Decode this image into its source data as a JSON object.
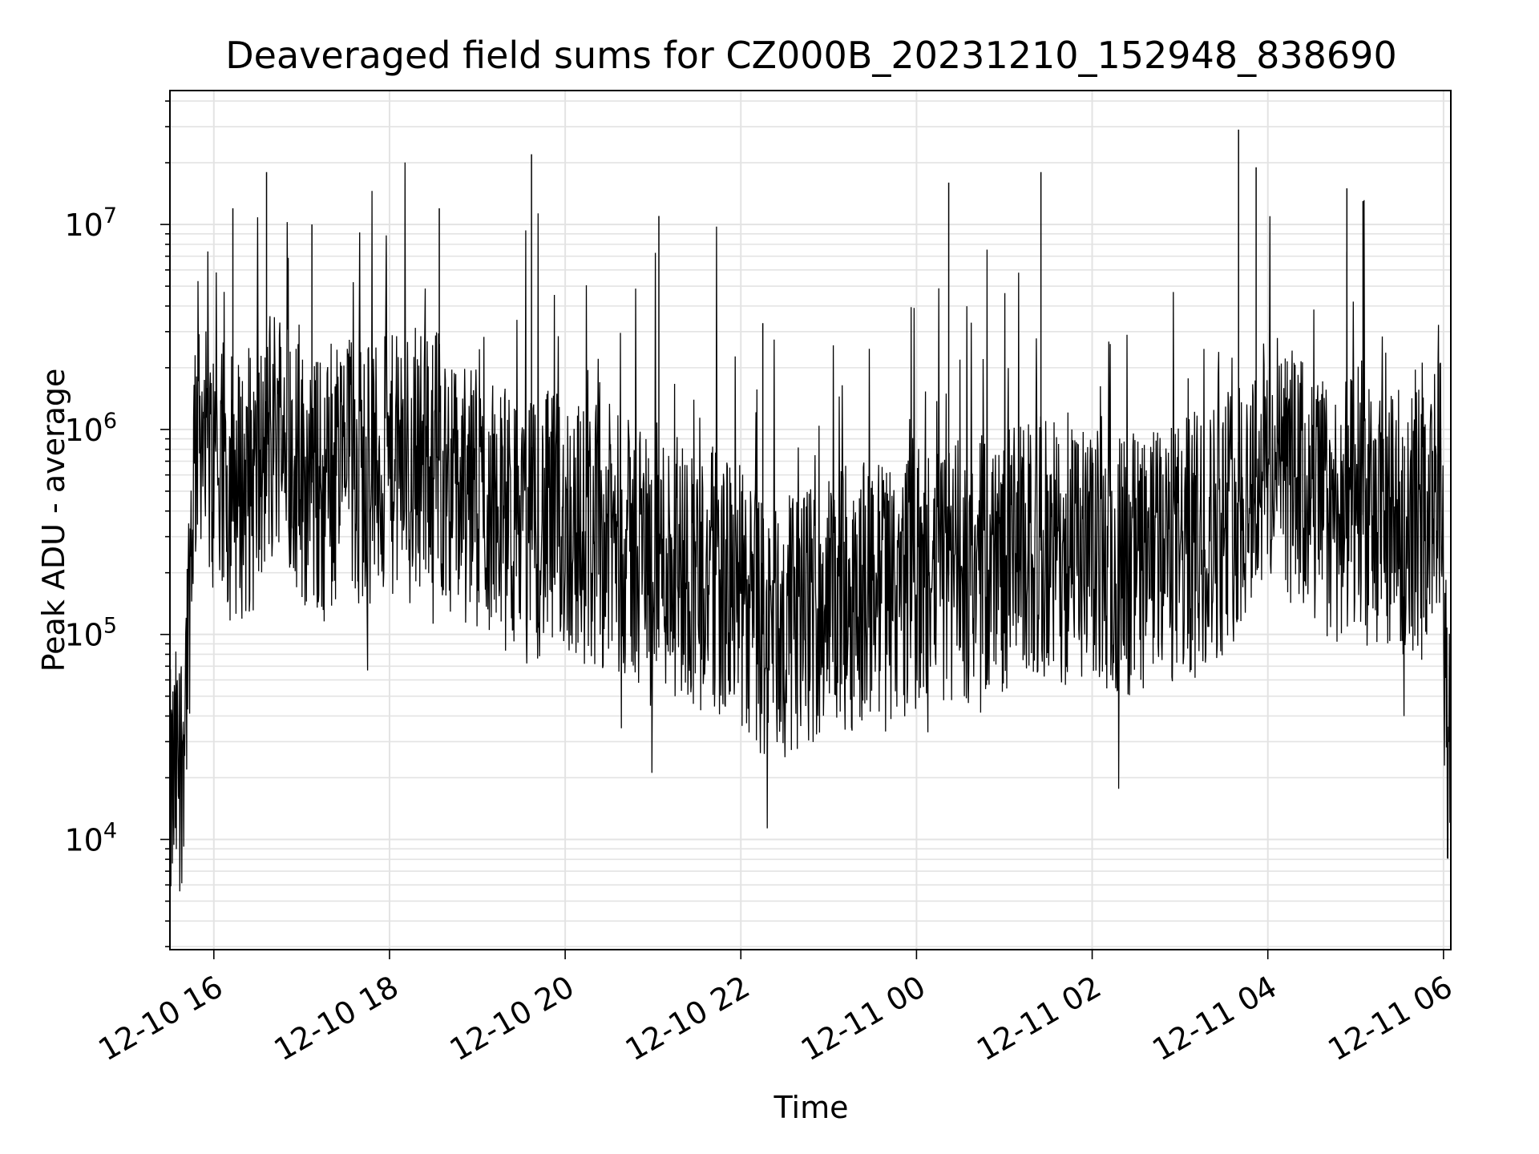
{
  "chart_data": {
    "type": "line",
    "title": "Deaveraged field sums for CZ000B_20231210_152948_838690",
    "xlabel": "Time",
    "ylabel": "Peak ADU - average",
    "yscale": "log",
    "ylim": [
      2900,
      45000000
    ],
    "xlim": [
      "2023-12-10 15:30",
      "2023-12-11 06:05"
    ],
    "grid": true,
    "line_color": "#000000",
    "x_ticks": [
      {
        "value": "2023-12-10 16:00",
        "label": "12-10 16"
      },
      {
        "value": "2023-12-10 18:00",
        "label": "12-10 18"
      },
      {
        "value": "2023-12-10 20:00",
        "label": "12-10 20"
      },
      {
        "value": "2023-12-10 22:00",
        "label": "12-10 22"
      },
      {
        "value": "2023-12-11 00:00",
        "label": "12-11 00"
      },
      {
        "value": "2023-12-11 02:00",
        "label": "12-11 02"
      },
      {
        "value": "2023-12-11 04:00",
        "label": "12-11 04"
      },
      {
        "value": "2023-12-11 06:00",
        "label": "12-11 06"
      }
    ],
    "y_ticks": [
      {
        "value": 10000,
        "base": "10",
        "exp": "4"
      },
      {
        "value": 100000,
        "base": "10",
        "exp": "5"
      },
      {
        "value": 1000000,
        "base": "10",
        "exp": "6"
      },
      {
        "value": 10000000,
        "base": "10",
        "exp": "7"
      }
    ],
    "series": [
      {
        "x": [
          "2023-12-10 15:30",
          "2023-12-10 15:34",
          "2023-12-10 15:38",
          "2023-12-10 15:42",
          "2023-12-10 15:46",
          "2023-12-10 15:50",
          "2023-12-10 15:54",
          "2023-12-10 16:10",
          "2023-12-10 16:30",
          "2023-12-10 16:45",
          "2023-12-10 17:00",
          "2023-12-10 17:15",
          "2023-12-10 17:30",
          "2023-12-10 17:45",
          "2023-12-10 18:00",
          "2023-12-10 18:15",
          "2023-12-10 18:30",
          "2023-12-10 18:45",
          "2023-12-10 19:00",
          "2023-12-10 19:15",
          "2023-12-10 19:30",
          "2023-12-10 19:45",
          "2023-12-10 20:00",
          "2023-12-10 20:15",
          "2023-12-10 20:30",
          "2023-12-10 20:45",
          "2023-12-10 21:00",
          "2023-12-10 21:15",
          "2023-12-10 21:30",
          "2023-12-10 21:45",
          "2023-12-10 22:00",
          "2023-12-10 22:15",
          "2023-12-10 22:30",
          "2023-12-10 22:45",
          "2023-12-10 23:00",
          "2023-12-10 23:15",
          "2023-12-10 23:30",
          "2023-12-10 23:45",
          "2023-12-11 00:00",
          "2023-12-11 00:15",
          "2023-12-11 00:30",
          "2023-12-11 00:45",
          "2023-12-11 01:00",
          "2023-12-11 01:15",
          "2023-12-11 01:30",
          "2023-12-11 01:45",
          "2023-12-11 02:00",
          "2023-12-11 02:15",
          "2023-12-11 02:30",
          "2023-12-11 02:45",
          "2023-12-11 03:00",
          "2023-12-11 03:15",
          "2023-12-11 03:30",
          "2023-12-11 03:45",
          "2023-12-11 04:00",
          "2023-12-11 04:15",
          "2023-12-11 04:30",
          "2023-12-11 04:45",
          "2023-12-11 05:00",
          "2023-12-11 05:15",
          "2023-12-11 05:30",
          "2023-12-11 05:45",
          "2023-12-11 05:58",
          "2023-12-11 06:02",
          "2023-12-11 06:05"
        ],
        "y": [
          15000,
          20000,
          25000,
          90000,
          600000,
          1500000,
          700000,
          500000,
          550000,
          1200000,
          600000,
          500000,
          700000,
          600000,
          650000,
          700000,
          800000,
          500000,
          450000,
          400000,
          300000,
          350000,
          350000,
          300000,
          300000,
          250000,
          250000,
          220000,
          200000,
          180000,
          150000,
          100000,
          110000,
          120000,
          150000,
          150000,
          170000,
          170000,
          180000,
          190000,
          200000,
          210000,
          230000,
          250000,
          260000,
          240000,
          230000,
          220000,
          220000,
          230000,
          250000,
          300000,
          350000,
          500000,
          700000,
          600000,
          450000,
          400000,
          400000,
          350000,
          350000,
          380000,
          500000,
          40000,
          25000
        ]
      }
    ],
    "spikes": [
      {
        "x": "2023-12-10 16:36",
        "y": 18000000
      },
      {
        "x": "2023-12-10 16:13",
        "y": 12000000
      },
      {
        "x": "2023-12-10 17:07",
        "y": 10000000
      },
      {
        "x": "2023-12-10 18:34",
        "y": 12000000
      },
      {
        "x": "2023-12-10 19:37",
        "y": 22000000
      },
      {
        "x": "2023-12-10 21:04",
        "y": 11000000
      },
      {
        "x": "2023-12-10 22:15",
        "y": 3300000
      },
      {
        "x": "2023-12-11 00:22",
        "y": 16000000
      },
      {
        "x": "2023-12-11 01:25",
        "y": 18000000
      },
      {
        "x": "2023-12-11 03:40",
        "y": 29000000
      },
      {
        "x": "2023-12-11 03:52",
        "y": 19000000
      },
      {
        "x": "2023-12-11 04:54",
        "y": 15000000
      },
      {
        "x": "2023-12-11 05:05",
        "y": 13000000
      }
    ]
  }
}
